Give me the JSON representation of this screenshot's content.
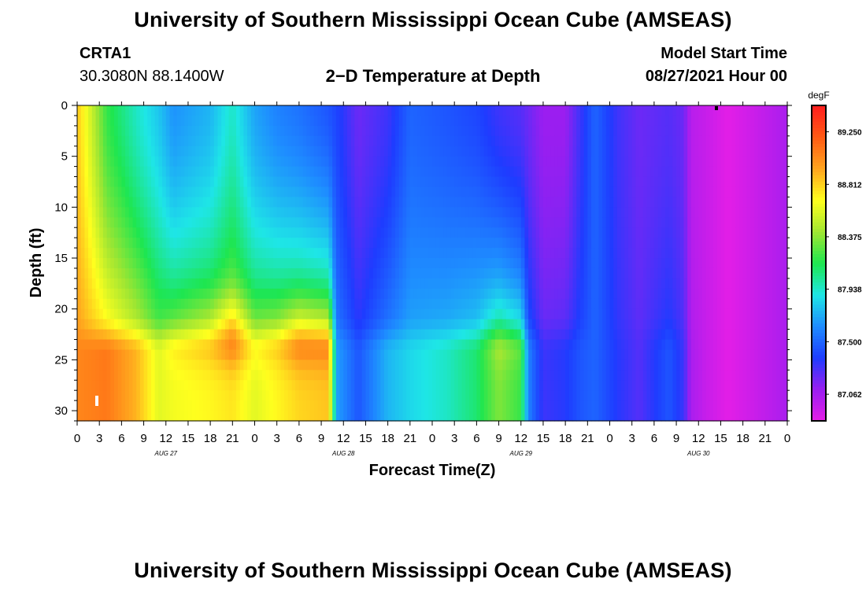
{
  "header": {
    "title": "University of Southern Mississippi Ocean Cube (AMSEAS)",
    "station_id": "CRTA1",
    "station_coords": "30.3080N  88.1400W",
    "plot_title": "2−D Temperature at Depth",
    "model_start_label": "Model Start Time",
    "model_start_value": "08/27/2021 Hour 00"
  },
  "footer": {
    "title": "University of Southern Mississippi Ocean Cube (AMSEAS)"
  },
  "chart_data": {
    "type": "heatmap",
    "title": "2−D Temperature at Depth",
    "xlabel": "Forecast Time(Z)",
    "ylabel": "Depth (ft)",
    "xlim": [
      0,
      96
    ],
    "ylim": [
      0,
      31
    ],
    "y_ticks": [
      0,
      5,
      10,
      15,
      20,
      25,
      30
    ],
    "y_tick_labels": [
      "0",
      "5",
      "10",
      "15",
      "20",
      "25",
      "30"
    ],
    "x_ticks": [
      0,
      3,
      6,
      9,
      12,
      15,
      18,
      21,
      24,
      27,
      30,
      33,
      36,
      39,
      42,
      45,
      48,
      51,
      54,
      57,
      60,
      63,
      66,
      69,
      72,
      75,
      78,
      81,
      84,
      87,
      90,
      93,
      96
    ],
    "x_tick_labels": [
      "0",
      "3",
      "6",
      "9",
      "12",
      "15",
      "18",
      "21",
      "0",
      "3",
      "6",
      "9",
      "12",
      "15",
      "18",
      "21",
      "0",
      "3",
      "6",
      "9",
      "12",
      "15",
      "18",
      "21",
      "0",
      "3",
      "6",
      "9",
      "12",
      "15",
      "18",
      "21",
      "0"
    ],
    "day_labels": [
      {
        "hour": 12,
        "label": "AUG 27"
      },
      {
        "hour": 36,
        "label": "AUG 28"
      },
      {
        "hour": 60,
        "label": "AUG 29"
      },
      {
        "hour": 84,
        "label": "AUG 30"
      }
    ],
    "colorbar": {
      "unit": "degF",
      "min": 86.84,
      "max": 89.47,
      "tick_values": [
        89.25,
        88.812,
        88.375,
        87.938,
        87.5,
        87.062
      ],
      "tick_labels": [
        "89.250",
        "88.812",
        "88.375",
        "87.938",
        "87.500",
        "87.062"
      ],
      "colors": [
        "#e61ee6",
        "#9a1ef0",
        "#1e3cff",
        "#1e8cff",
        "#1ee6e6",
        "#1ee650",
        "#a0e632",
        "#ffff1e",
        "#ffa51e",
        "#ff5a14",
        "#ff1e1e"
      ]
    },
    "column_profiles": [
      {
        "hour": 0,
        "surface": 88.85,
        "bottom": 89.05,
        "bump": 0
      },
      {
        "hour": 4,
        "surface": 88.2,
        "bottom": 89.1,
        "bump": 0
      },
      {
        "hour": 8,
        "surface": 87.95,
        "bottom": 88.9,
        "bump": 0
      },
      {
        "hour": 11,
        "surface": 87.8,
        "bottom": 88.6,
        "bump": 0
      },
      {
        "hour": 13,
        "surface": 87.65,
        "bottom": 88.65,
        "bump": 0.3
      },
      {
        "hour": 18,
        "surface": 87.75,
        "bottom": 88.7,
        "bump": 0.6
      },
      {
        "hour": 21,
        "surface": 87.95,
        "bottom": 88.75,
        "bump": 1.2
      },
      {
        "hour": 24,
        "surface": 87.7,
        "bottom": 88.6,
        "bump": 0.4
      },
      {
        "hour": 27,
        "surface": 87.6,
        "bottom": 88.7,
        "bump": 0.5
      },
      {
        "hour": 30,
        "surface": 87.55,
        "bottom": 88.8,
        "bump": 1.0
      },
      {
        "hour": 34,
        "surface": 87.45,
        "bottom": 88.85,
        "bump": 0.8
      },
      {
        "hour": 35,
        "surface": 87.4,
        "bottom": 87.7,
        "bump": 0
      },
      {
        "hour": 38,
        "surface": 87.2,
        "bottom": 87.45,
        "bump": 0
      },
      {
        "hour": 42,
        "surface": 87.3,
        "bottom": 87.75,
        "bump": 0
      },
      {
        "hour": 45,
        "surface": 87.5,
        "bottom": 87.85,
        "bump": 0
      },
      {
        "hour": 50,
        "surface": 87.45,
        "bottom": 87.95,
        "bump": 0
      },
      {
        "hour": 54,
        "surface": 87.4,
        "bottom": 88.1,
        "bump": 0
      },
      {
        "hour": 57,
        "surface": 87.3,
        "bottom": 88.35,
        "bump": 0.4
      },
      {
        "hour": 60,
        "surface": 87.25,
        "bottom": 88.2,
        "bump": 0.3
      },
      {
        "hour": 61,
        "surface": 87.2,
        "bottom": 87.6,
        "bump": 0
      },
      {
        "hour": 63,
        "surface": 87.1,
        "bottom": 87.3,
        "bump": 0
      },
      {
        "hour": 66,
        "surface": 87.1,
        "bottom": 87.35,
        "bump": 0
      },
      {
        "hour": 68,
        "surface": 87.3,
        "bottom": 87.45,
        "bump": 0
      },
      {
        "hour": 70,
        "surface": 87.5,
        "bottom": 87.5,
        "bump": 0
      },
      {
        "hour": 73,
        "surface": 87.3,
        "bottom": 87.35,
        "bump": 0
      },
      {
        "hour": 76,
        "surface": 87.2,
        "bottom": 87.25,
        "bump": 0
      },
      {
        "hour": 80,
        "surface": 87.25,
        "bottom": 87.45,
        "bump": 0
      },
      {
        "hour": 82,
        "surface": 87.2,
        "bottom": 87.3,
        "bump": 0
      },
      {
        "hour": 83,
        "surface": 87.0,
        "bottom": 87.05,
        "bump": 0
      },
      {
        "hour": 85,
        "surface": 86.95,
        "bottom": 86.95,
        "bump": 0
      },
      {
        "hour": 88,
        "surface": 86.85,
        "bottom": 86.85,
        "bump": 0
      },
      {
        "hour": 92,
        "surface": 86.95,
        "bottom": 86.95,
        "bump": 0
      },
      {
        "hour": 96,
        "surface": 87.05,
        "bottom": 87.05,
        "bump": 0
      }
    ]
  }
}
